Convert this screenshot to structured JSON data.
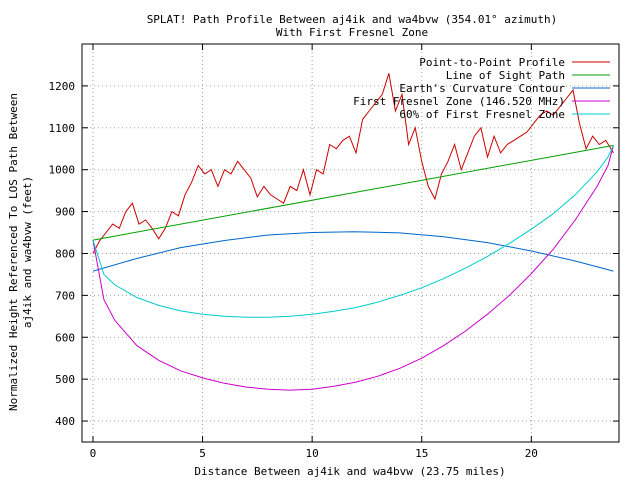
{
  "title_line1": "SPLAT! Path Profile Between aj4ik and wa4bvw (354.01° azimuth)",
  "title_line2": "With First Fresnel Zone",
  "chart_data": {
    "type": "line",
    "title": "SPLAT! Path Profile Between aj4ik and wa4bvw (354.01° azimuth) With First Fresnel Zone",
    "xlabel": "Distance Between aj4ik and wa4bvw (23.75 miles)",
    "ylabel_line1": "Normalized Height Referenced To LOS Path Between",
    "ylabel_line2": "aj4ik and wa4bvw (feet)",
    "xlim": [
      -0.5,
      24
    ],
    "ylim": [
      350,
      1300
    ],
    "x_ticks": [
      0,
      5,
      10,
      15,
      20
    ],
    "x_tick_labels": [
      "0",
      "5",
      "10",
      "15",
      "20"
    ],
    "y_ticks": [
      400,
      500,
      600,
      700,
      800,
      900,
      1000,
      1100,
      1200
    ],
    "y_tick_labels": [
      "400",
      "500",
      "600",
      "700",
      "800",
      "900",
      "1000",
      "1100",
      "1200"
    ],
    "grid": true,
    "legend_position": "top-right",
    "series": [
      {
        "name": "Point-to-Point Profile",
        "color": "#cc0000",
        "x": [
          0,
          0.3,
          0.6,
          0.9,
          1.2,
          1.5,
          1.8,
          2.1,
          2.4,
          2.7,
          3.0,
          3.3,
          3.6,
          3.9,
          4.2,
          4.5,
          4.8,
          5.1,
          5.4,
          5.7,
          6.0,
          6.3,
          6.6,
          6.9,
          7.2,
          7.5,
          7.8,
          8.1,
          8.4,
          8.7,
          9.0,
          9.3,
          9.6,
          9.9,
          10.2,
          10.5,
          10.8,
          11.1,
          11.4,
          11.7,
          12.0,
          12.3,
          12.6,
          12.9,
          13.2,
          13.5,
          13.8,
          14.1,
          14.4,
          14.7,
          15.0,
          15.3,
          15.6,
          15.9,
          16.2,
          16.5,
          16.8,
          17.1,
          17.4,
          17.7,
          18.0,
          18.3,
          18.6,
          18.9,
          19.2,
          19.5,
          19.8,
          20.1,
          20.4,
          20.7,
          21.0,
          21.3,
          21.6,
          21.9,
          22.2,
          22.5,
          22.8,
          23.1,
          23.4,
          23.75
        ],
        "values": [
          800,
          830,
          850,
          870,
          860,
          900,
          920,
          870,
          880,
          860,
          835,
          860,
          900,
          890,
          940,
          970,
          1010,
          990,
          1000,
          960,
          1000,
          990,
          1020,
          1000,
          980,
          935,
          960,
          940,
          930,
          920,
          960,
          950,
          1000,
          940,
          1000,
          990,
          1060,
          1050,
          1070,
          1080,
          1040,
          1120,
          1140,
          1160,
          1180,
          1230,
          1140,
          1180,
          1060,
          1100,
          1020,
          960,
          930,
          990,
          1020,
          1060,
          1000,
          1040,
          1080,
          1100,
          1030,
          1080,
          1040,
          1060,
          1070,
          1080,
          1090,
          1110,
          1130,
          1140,
          1130,
          1150,
          1170,
          1190,
          1110,
          1050,
          1080,
          1060,
          1070,
          1040
        ]
      },
      {
        "name": "Line of Sight Path",
        "color": "#00a000",
        "x": [
          0,
          23.75
        ],
        "values": [
          832,
          1058
        ]
      },
      {
        "name": "Earth's Curvature Contour",
        "color": "#0066cc",
        "x": [
          0,
          2,
          4,
          6,
          8,
          10,
          11.9,
          14,
          16,
          18,
          20,
          22,
          23.75
        ],
        "values": [
          758,
          788,
          814,
          831,
          844,
          850,
          852,
          849,
          840,
          826,
          806,
          782,
          758
        ]
      },
      {
        "name": "First Fresnel Zone (146.520 MHz)",
        "color": "#cc00cc",
        "x": [
          0,
          0.5,
          1,
          2,
          3,
          4,
          5,
          6,
          7,
          8,
          9,
          10,
          11,
          12,
          13,
          14,
          15,
          16,
          17,
          18,
          19,
          20,
          21,
          22,
          23,
          23.5,
          23.75
        ],
        "values": [
          832,
          690,
          640,
          580,
          545,
          520,
          503,
          490,
          481,
          476,
          474,
          476,
          483,
          493,
          507,
          526,
          550,
          580,
          615,
          655,
          700,
          752,
          810,
          880,
          960,
          1010,
          1058
        ]
      },
      {
        "name": "60% of First Fresnel Zone",
        "color": "#00cccc",
        "x": [
          0,
          0.5,
          1,
          2,
          3,
          4,
          5,
          6,
          7,
          8,
          9,
          10,
          11,
          12,
          13,
          14,
          15,
          16,
          17,
          18,
          19,
          20,
          21,
          22,
          23,
          23.5,
          23.75
        ],
        "values": [
          832,
          750,
          725,
          695,
          676,
          663,
          655,
          650,
          648,
          648,
          650,
          655,
          662,
          671,
          684,
          700,
          718,
          740,
          765,
          793,
          824,
          858,
          895,
          940,
          995,
          1030,
          1058
        ]
      }
    ]
  }
}
